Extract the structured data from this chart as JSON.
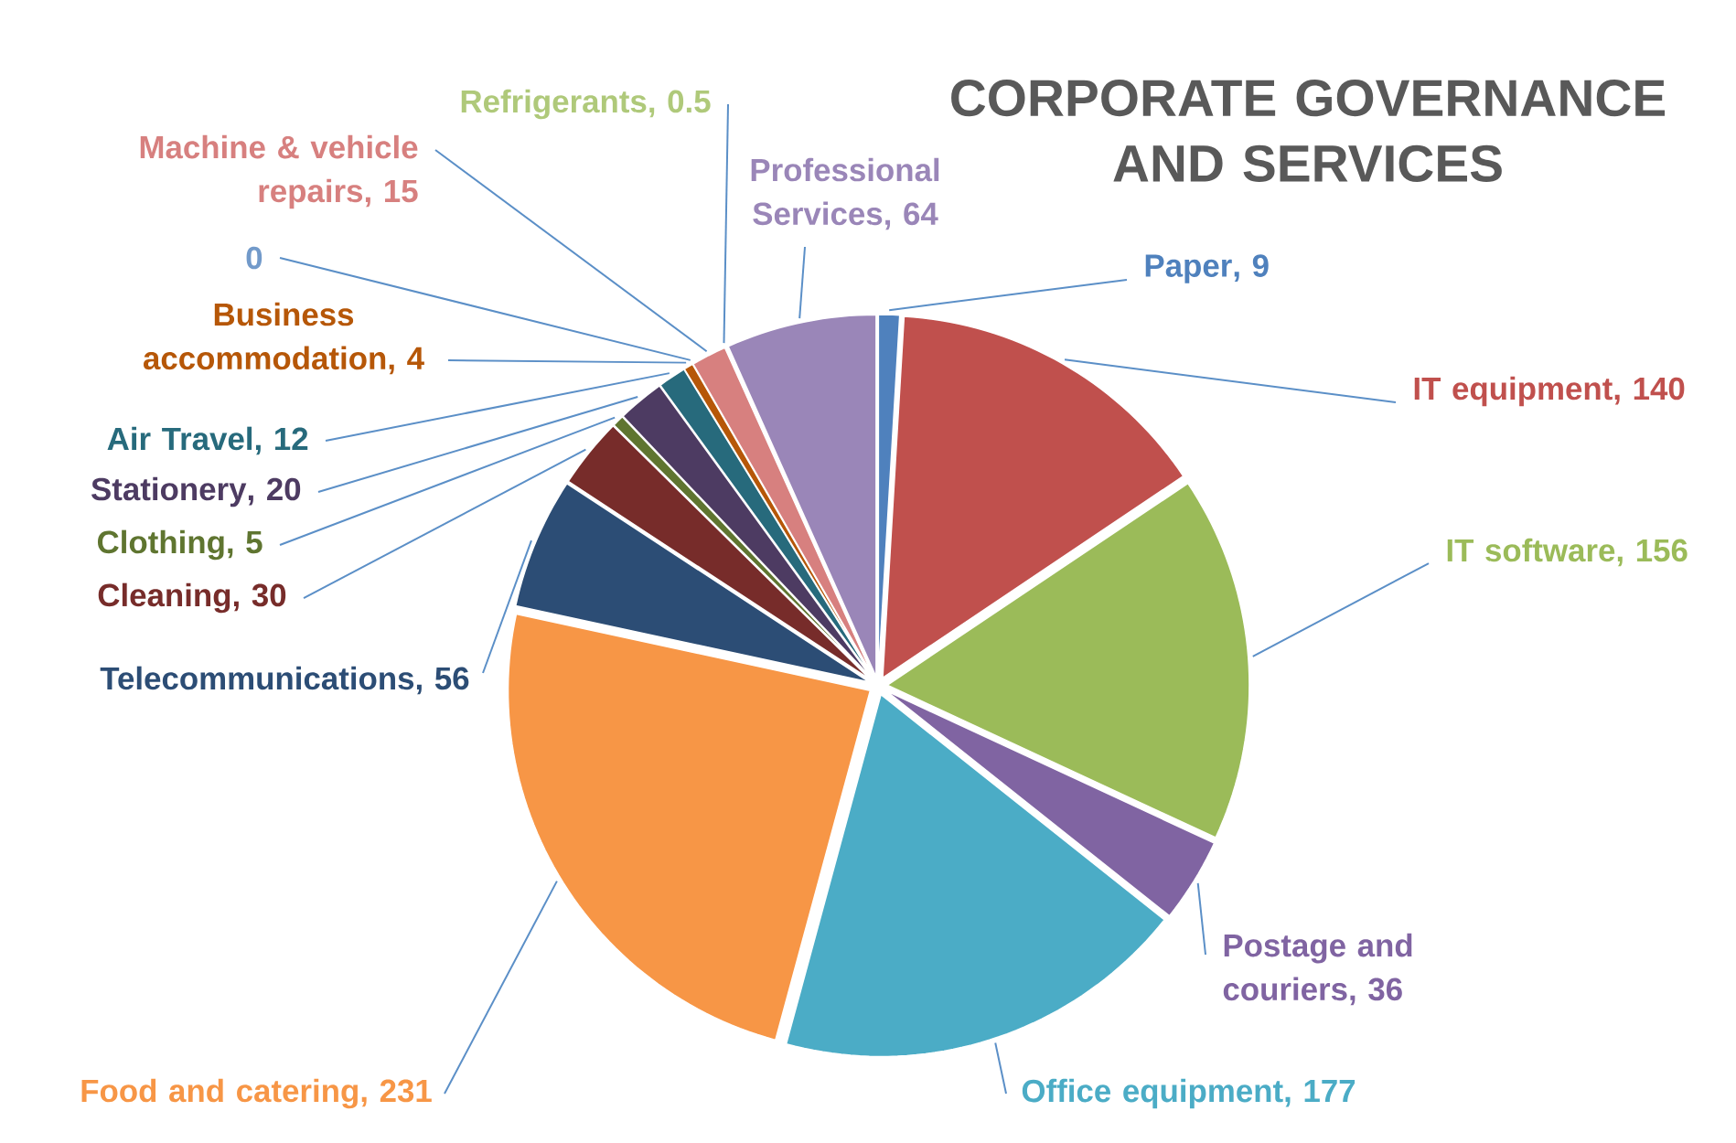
{
  "chart_data": {
    "type": "pie",
    "title": "CORPORATE GOVERNANCE AND SERVICES",
    "categories": [
      "Paper",
      "IT equipment",
      "IT software",
      "Postage and couriers",
      "Office equipment",
      "Food and catering",
      "Telecommunications",
      "Cleaning",
      "Clothing",
      "Stationery",
      "Air Travel",
      "Business accommodation",
      null,
      "Machine & vehicle repairs",
      "Refrigerants",
      "Professional Services"
    ],
    "values": [
      9,
      140,
      156,
      36,
      177,
      231,
      56,
      30,
      5,
      20,
      12,
      4,
      0,
      15,
      0.5,
      64
    ],
    "colors": [
      "#4f81bd",
      "#c0504d",
      "#9bbb59",
      "#8064a2",
      "#4bacc6",
      "#f79646",
      "#2c4d75",
      "#772c2a",
      "#5f7530",
      "#4d3b62",
      "#276a7c",
      "#b65708",
      "#729aca",
      "#d7807f",
      "#afc97a",
      "#9a86b8"
    ],
    "value_labels": [
      ", 9",
      ", 140",
      ", 156",
      ", 36",
      ", 177",
      ", 231",
      ", 56",
      ", 30",
      ", 5",
      ", 20",
      ", 12",
      ", 4",
      "0",
      ", 15",
      ", 0.5",
      ", 64"
    ]
  }
}
